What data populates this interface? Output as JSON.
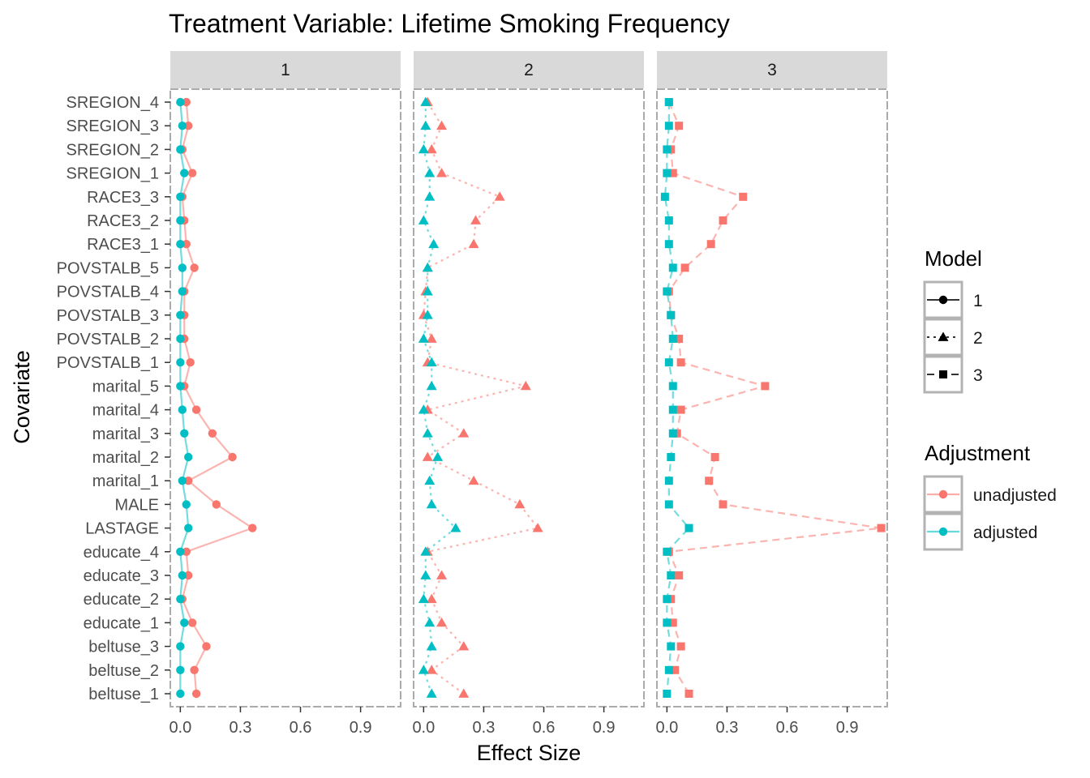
{
  "chart_data": {
    "type": "scatter",
    "title": "Treatment Variable: Lifetime Smoking Frequency",
    "xlabel": "Effect Size",
    "ylabel": "Covariate",
    "facets": [
      "1",
      "2",
      "3"
    ],
    "xlim": [
      -0.05,
      1.1
    ],
    "xticks": [
      0.0,
      0.3,
      0.6,
      0.9
    ],
    "xtick_labels": [
      "0.0",
      "0.3",
      "0.6",
      "0.9"
    ],
    "categories": [
      "SREGION_4",
      "SREGION_3",
      "SREGION_2",
      "SREGION_1",
      "RACE3_3",
      "RACE3_2",
      "RACE3_1",
      "POVSTALB_5",
      "POVSTALB_4",
      "POVSTALB_3",
      "POVSTALB_2",
      "POVSTALB_1",
      "marital_5",
      "marital_4",
      "marital_3",
      "marital_2",
      "marital_1",
      "MALE",
      "LASTAGE",
      "educate_4",
      "educate_3",
      "educate_2",
      "educate_1",
      "beltuse_3",
      "beltuse_2",
      "beltuse_1"
    ],
    "series": [
      {
        "model": "1",
        "adjustment": "unadjusted",
        "values": [
          0.03,
          0.04,
          0.01,
          0.06,
          0.01,
          0.02,
          0.03,
          0.07,
          0.02,
          0.02,
          0.02,
          0.05,
          0.02,
          0.08,
          0.16,
          0.26,
          0.04,
          0.18,
          0.36,
          0.03,
          0.04,
          0.01,
          0.06,
          0.13,
          0.07,
          0.08
        ]
      },
      {
        "model": "1",
        "adjustment": "adjusted",
        "values": [
          0.0,
          0.01,
          0.0,
          0.02,
          0.0,
          0.0,
          0.0,
          0.01,
          0.01,
          0.0,
          0.0,
          0.0,
          0.0,
          0.01,
          0.02,
          0.04,
          0.01,
          0.03,
          0.04,
          0.0,
          0.01,
          0.0,
          0.02,
          0.0,
          0.0,
          0.0
        ]
      },
      {
        "model": "2",
        "adjustment": "unadjusted",
        "values": [
          0.02,
          0.09,
          0.04,
          0.09,
          0.38,
          0.26,
          0.25,
          0.02,
          0.01,
          0.0,
          0.04,
          0.02,
          0.51,
          0.02,
          0.2,
          0.02,
          0.25,
          0.48,
          0.57,
          0.02,
          0.09,
          0.04,
          0.09,
          0.2,
          0.04,
          0.2
        ]
      },
      {
        "model": "2",
        "adjustment": "adjusted",
        "values": [
          0.01,
          0.01,
          0.0,
          0.03,
          0.03,
          0.0,
          0.05,
          0.02,
          0.02,
          0.02,
          0.0,
          0.04,
          0.04,
          0.0,
          0.02,
          0.07,
          0.03,
          0.04,
          0.16,
          0.01,
          0.01,
          0.0,
          0.03,
          0.04,
          0.0,
          0.04
        ]
      },
      {
        "model": "3",
        "adjustment": "unadjusted",
        "values": [
          0.01,
          0.06,
          0.02,
          0.03,
          0.38,
          0.28,
          0.22,
          0.09,
          0.01,
          0.02,
          0.06,
          0.07,
          0.49,
          0.07,
          0.05,
          0.24,
          0.21,
          0.28,
          1.07,
          0.01,
          0.06,
          0.02,
          0.03,
          0.07,
          0.04,
          0.11
        ]
      },
      {
        "model": "3",
        "adjustment": "adjusted",
        "values": [
          0.01,
          0.01,
          0.0,
          0.0,
          -0.01,
          0.01,
          0.01,
          0.03,
          0.0,
          0.02,
          0.03,
          0.01,
          0.03,
          0.03,
          0.03,
          0.02,
          0.01,
          0.01,
          0.11,
          0.0,
          0.02,
          0.0,
          0.0,
          0.02,
          0.01,
          0.0
        ]
      }
    ],
    "legends": [
      {
        "title": "Model",
        "entries": [
          {
            "label": "1",
            "shape": "circle",
            "dash": "solid"
          },
          {
            "label": "2",
            "shape": "triangle",
            "dash": "dotted"
          },
          {
            "label": "3",
            "shape": "square",
            "dash": "dashed"
          }
        ]
      },
      {
        "title": "Adjustment",
        "entries": [
          {
            "label": "unadjusted",
            "color": "#F8766D"
          },
          {
            "label": "adjusted",
            "color": "#00BFC4"
          }
        ]
      }
    ],
    "legend_position": "right",
    "colors": {
      "unadjusted": "#F8766D",
      "adjusted": "#00BFC4",
      "strip": "#D9D9D9",
      "panel_border": "#ABABAB"
    },
    "grid": false
  }
}
